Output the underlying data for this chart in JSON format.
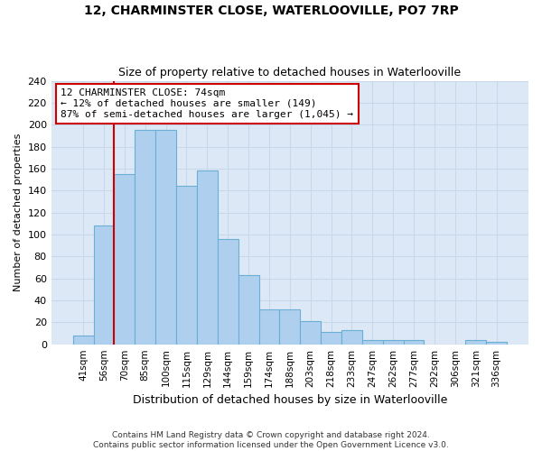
{
  "title1": "12, CHARMINSTER CLOSE, WATERLOOVILLE, PO7 7RP",
  "title2": "Size of property relative to detached houses in Waterlooville",
  "xlabel": "Distribution of detached houses by size in Waterlooville",
  "ylabel": "Number of detached properties",
  "categories": [
    "41sqm",
    "56sqm",
    "70sqm",
    "85sqm",
    "100sqm",
    "115sqm",
    "129sqm",
    "144sqm",
    "159sqm",
    "174sqm",
    "188sqm",
    "203sqm",
    "218sqm",
    "233sqm",
    "247sqm",
    "262sqm",
    "277sqm",
    "292sqm",
    "306sqm",
    "321sqm",
    "336sqm"
  ],
  "values": [
    8,
    108,
    155,
    195,
    195,
    144,
    158,
    96,
    63,
    32,
    32,
    21,
    11,
    13,
    4,
    4,
    4,
    0,
    0,
    4,
    2
  ],
  "bar_color": "#aed0ee",
  "bar_edge_color": "#6aaed6",
  "vline_color": "#cc0000",
  "vline_x": 1.5,
  "annotation_text": "12 CHARMINSTER CLOSE: 74sqm\n← 12% of detached houses are smaller (149)\n87% of semi-detached houses are larger (1,045) →",
  "annotation_box_edgecolor": "#cc0000",
  "footer1": "Contains HM Land Registry data © Crown copyright and database right 2024.",
  "footer2": "Contains public sector information licensed under the Open Government Licence v3.0.",
  "ylim": [
    0,
    240
  ],
  "yticks": [
    0,
    20,
    40,
    60,
    80,
    100,
    120,
    140,
    160,
    180,
    200,
    220,
    240
  ],
  "grid_color": "#c8d8ea",
  "bg_color": "#dce8f5",
  "title1_fontsize": 10,
  "title2_fontsize": 9,
  "ylabel_fontsize": 8,
  "xlabel_fontsize": 9,
  "tick_fontsize": 7.5,
  "footer_fontsize": 6.5,
  "ann_fontsize": 8
}
